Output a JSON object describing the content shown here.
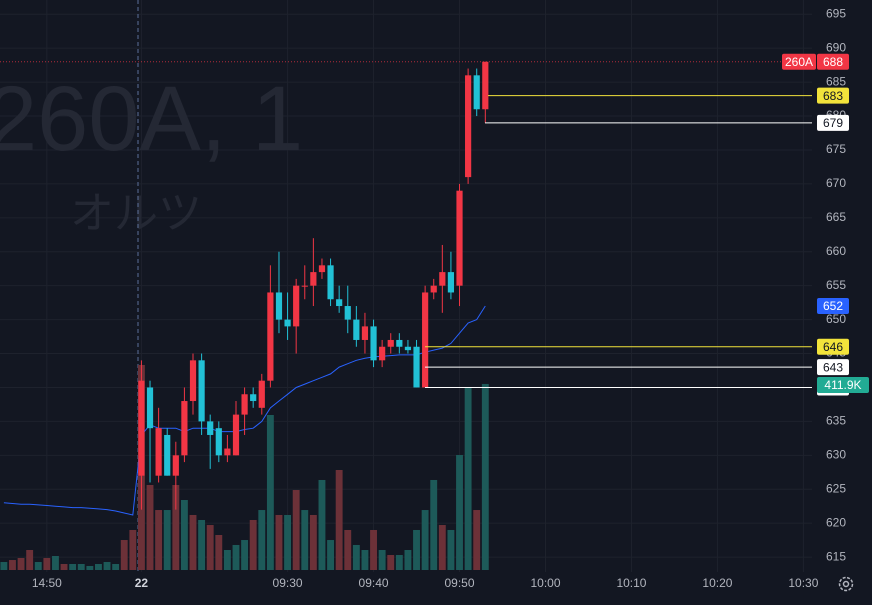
{
  "chart_data": {
    "type": "candlestick",
    "watermark": "260A, 1",
    "watermark_name": "オルツ",
    "symbol_tag": "260A",
    "up_color": "#f23645",
    "down_color": "#22c1d6",
    "xlim": [
      -0.45,
      94
    ],
    "xticks": [
      {
        "value": 5,
        "label": "14:50"
      },
      {
        "value": 16,
        "label": "22"
      },
      {
        "value": 33,
        "label": "09:30"
      },
      {
        "value": 43,
        "label": "09:40"
      },
      {
        "value": 53,
        "label": "09:50"
      },
      {
        "value": 63,
        "label": "10:00"
      },
      {
        "value": 73,
        "label": "10:10"
      },
      {
        "value": 83,
        "label": "10:20"
      },
      {
        "value": 93,
        "label": "10:30"
      }
    ],
    "ylim": [
      613.1,
      697.1
    ],
    "yticks": [
      615,
      620,
      625,
      630,
      635,
      640,
      645,
      650,
      655,
      660,
      665,
      670,
      675,
      680,
      685,
      690,
      695
    ],
    "grid": true,
    "open": [
      null,
      null,
      null,
      null,
      null,
      null,
      null,
      null,
      null,
      null,
      null,
      null,
      null,
      null,
      null,
      null,
      627,
      640,
      627,
      633,
      627,
      630,
      638,
      644,
      635,
      634,
      630,
      630,
      636,
      639,
      637,
      641,
      654,
      650,
      649,
      655,
      655,
      657,
      658,
      653,
      652,
      650,
      647,
      649,
      644,
      646,
      647,
      646,
      646,
      640,
      654,
      655,
      657,
      655,
      671,
      686,
      681
    ],
    "high": [
      null,
      null,
      null,
      null,
      null,
      null,
      null,
      null,
      null,
      null,
      null,
      null,
      null,
      null,
      null,
      null,
      644,
      641,
      637,
      634,
      632,
      640,
      645,
      645,
      636,
      635,
      633,
      638,
      640,
      640,
      642,
      658,
      660,
      654,
      656,
      658,
      662,
      659,
      659,
      655,
      655,
      652,
      651,
      650,
      647,
      648,
      648,
      647,
      647,
      655,
      656,
      661,
      660,
      670,
      687,
      687,
      688
    ],
    "low": [
      null,
      null,
      null,
      null,
      null,
      null,
      null,
      null,
      null,
      null,
      null,
      null,
      null,
      null,
      null,
      null,
      622,
      626,
      626,
      627,
      622,
      629,
      636,
      633,
      628,
      629,
      629,
      630,
      633,
      637,
      636,
      640,
      648,
      647,
      645,
      653,
      652,
      656,
      652,
      651,
      648,
      646,
      645,
      643,
      643,
      645,
      645,
      645,
      640,
      640,
      653,
      651,
      653,
      652,
      670,
      680,
      679
    ],
    "close": [
      null,
      null,
      null,
      null,
      null,
      null,
      null,
      null,
      null,
      null,
      null,
      null,
      null,
      null,
      null,
      null,
      641,
      634,
      634,
      627,
      630,
      638,
      644,
      635,
      633,
      630,
      631,
      636,
      639,
      638,
      641,
      654,
      650,
      649,
      655,
      655,
      657,
      658,
      653,
      652,
      650,
      647,
      649,
      644,
      646,
      647,
      646,
      645.5,
      640,
      654,
      655,
      657,
      654,
      669,
      686,
      681,
      688
    ],
    "vwap": {
      "color": "#2962ff",
      "values": [
        623,
        622.9,
        622.8,
        622.8,
        622.7,
        622.6,
        622.5,
        622.4,
        622.3,
        622.3,
        622.2,
        622.1,
        622,
        621.8,
        621.5,
        621.2,
        633,
        634.5,
        634,
        634,
        634,
        633.5,
        634,
        634,
        634,
        633.5,
        633.5,
        633.5,
        633.8,
        634,
        635,
        637,
        638,
        639,
        640,
        640.5,
        641,
        641.5,
        642,
        643,
        643.5,
        644,
        644.3,
        644.5,
        644.6,
        644.7,
        644.8,
        644.8,
        644.8,
        645.2,
        645.5,
        645.8,
        646.5,
        648,
        649.5,
        650,
        652
      ]
    },
    "y2lim": [
      0,
      1262000
    ],
    "volume": [
      17700,
      22100,
      26600,
      44300,
      17700,
      26600,
      31000,
      13300,
      13300,
      13300,
      8900,
      13300,
      17700,
      13300,
      66400,
      88600,
      453900,
      188200,
      132800,
      132800,
      188200,
      155000,
      121800,
      110700,
      99600,
      77500,
      44300,
      55400,
      66400,
      110700,
      132800,
      343200,
      121800,
      121800,
      177100,
      132800,
      121800,
      199300,
      66400,
      221400,
      88600,
      55400,
      44300,
      88600,
      44300,
      33200,
      33200,
      44300,
      88600,
      132800,
      199300,
      99600,
      88600,
      254600,
      405000,
      132800,
      411900
    ],
    "volume_colors": [
      "#1d5a59",
      "#6c3138",
      "#6c3138",
      "#6c3138",
      "#1d5a59",
      "#6c3138",
      "#1d5a59",
      "#6c3138",
      "#1d5a59",
      "#1d5a59",
      "#1d5a59",
      "#1d5a59",
      "#1d5a59",
      "#1d5a59",
      "#6c3138",
      "#6c3138",
      "#6c3138",
      "#6c3138",
      "#6c3138",
      "#1d5a59",
      "#6c3138",
      "#1d5a59",
      "#6c3138",
      "#1d5a59",
      "#6c3138",
      "#6c3138",
      "#1d5a59",
      "#1d5a59",
      "#1d5a59",
      "#6c3138",
      "#1d5a59",
      "#1d5a59",
      "#6c3138",
      "#1d5a59",
      "#6c3138",
      "#1d5a59",
      "#6c3138",
      "#1d5a59",
      "#1d5a59",
      "#6c3138",
      "#6c3138",
      "#1d5a59",
      "#1d5a59",
      "#6c3138",
      "#1d5a59",
      "#6c3138",
      "#1d5a59",
      "#1d5a59",
      "#1d5a59",
      "#1d5a59",
      "#1d5a59",
      "#6c3138",
      "#1d5a59",
      "#1d5a59",
      "#1d5a59",
      "#6c3138",
      "#1d5a59"
    ],
    "volume_label": "411.9K",
    "volume_label_color": "#22ab94",
    "levels": [
      {
        "value": 683,
        "color": "#f2e33b"
      },
      {
        "value": 679,
        "color": "#ffffff"
      },
      {
        "value": 646,
        "color": "#f2e33b"
      },
      {
        "value": 643,
        "color": "#ffffff"
      },
      {
        "value": 640,
        "color": "#ffffff"
      }
    ]
  }
}
